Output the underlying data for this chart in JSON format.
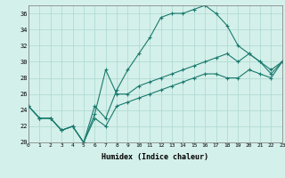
{
  "xlabel": "Humidex (Indice chaleur)",
  "background_color": "#d4f0ea",
  "grid_color": "#aad8d0",
  "line_color": "#1a7a6e",
  "xlim": [
    0,
    23
  ],
  "ylim": [
    20,
    37
  ],
  "yticks": [
    20,
    22,
    24,
    26,
    28,
    30,
    32,
    34,
    36
  ],
  "xticks": [
    0,
    1,
    2,
    3,
    4,
    5,
    6,
    7,
    8,
    9,
    10,
    11,
    12,
    13,
    14,
    15,
    16,
    17,
    18,
    19,
    20,
    21,
    22,
    23
  ],
  "series1": {
    "x": [
      0,
      1,
      2,
      3,
      4,
      5,
      6,
      7,
      8,
      9,
      10,
      11,
      12,
      13,
      14,
      15,
      16,
      17,
      18,
      19,
      20,
      21,
      22,
      23
    ],
    "y": [
      24.5,
      23,
      23,
      21.5,
      22,
      20,
      24.5,
      23,
      26.5,
      29,
      31,
      33,
      35.5,
      36,
      36,
      36.5,
      37,
      36,
      34.5,
      32,
      31,
      30,
      28.5,
      30
    ]
  },
  "series2": {
    "x": [
      0,
      1,
      2,
      3,
      4,
      5,
      6,
      7,
      8,
      9,
      10,
      11,
      12,
      13,
      14,
      15,
      16,
      17,
      18,
      19,
      20,
      21,
      22,
      23
    ],
    "y": [
      24.5,
      23,
      23,
      21.5,
      22,
      20,
      23.5,
      29,
      26,
      26,
      27,
      27.5,
      28,
      28.5,
      29,
      29.5,
      30,
      30.5,
      31,
      30,
      31,
      30,
      29,
      30
    ]
  },
  "series3": {
    "x": [
      0,
      1,
      2,
      3,
      4,
      5,
      6,
      7,
      8,
      9,
      10,
      11,
      12,
      13,
      14,
      15,
      16,
      17,
      18,
      19,
      20,
      21,
      22,
      23
    ],
    "y": [
      24.5,
      23,
      23,
      21.5,
      22,
      20,
      23,
      22,
      24.5,
      25,
      25.5,
      26,
      26.5,
      27,
      27.5,
      28,
      28.5,
      28.5,
      28,
      28,
      29,
      28.5,
      28,
      30
    ]
  }
}
